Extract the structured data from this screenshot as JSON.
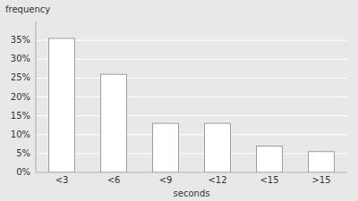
{
  "chart_data": {
    "type": "bar",
    "categories": [
      "<3",
      "<6",
      "<9",
      "<12",
      "<15",
      ">15"
    ],
    "values": [
      35.5,
      26.0,
      13.0,
      13.0,
      7.0,
      5.5
    ],
    "color": "white",
    "xlabel": "seconds",
    "ylabel": "frequency",
    "ylim": [
      0,
      40
    ],
    "yticks": [
      {
        "value": 0,
        "label": "0%"
      },
      {
        "value": 5,
        "label": "5%"
      },
      {
        "value": 10,
        "label": "10%"
      },
      {
        "value": 15,
        "label": "15%"
      },
      {
        "value": 20,
        "label": "20%"
      },
      {
        "value": 25,
        "label": "25%"
      },
      {
        "value": 30,
        "label": "30%"
      },
      {
        "value": 35,
        "label": "35%"
      }
    ],
    "grid": true
  }
}
